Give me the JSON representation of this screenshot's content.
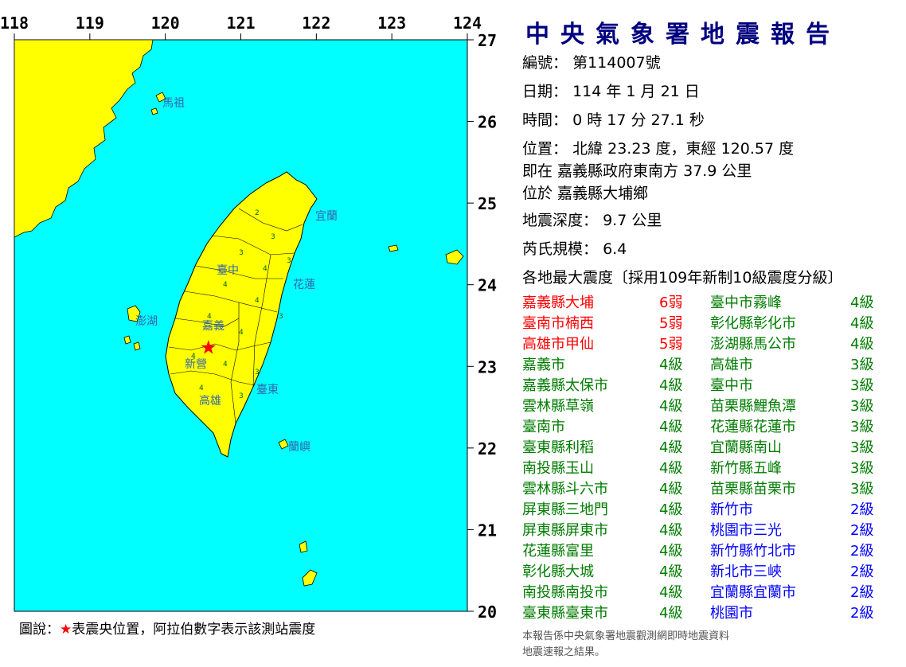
{
  "map": {
    "lon_ticks": [
      "118",
      "119",
      "120",
      "121",
      "122",
      "123",
      "124"
    ],
    "lat_ticks": [
      "27",
      "26",
      "25",
      "24",
      "23",
      "22",
      "21",
      "20"
    ],
    "place_labels": [
      {
        "name": "馬祖"
      },
      {
        "name": "宜蘭"
      },
      {
        "name": "花蓮"
      },
      {
        "name": "澎湖"
      },
      {
        "name": "臺東"
      },
      {
        "name": "蘭嶼"
      },
      {
        "name": "嘉義"
      },
      {
        "name": "新營"
      },
      {
        "name": "高雄"
      },
      {
        "name": "臺中"
      }
    ],
    "epicenter": {
      "lat": 23.23,
      "lon": 120.57
    },
    "colors": {
      "sea": "#00ffff",
      "land": "#ffff00",
      "epicenter": "#ff0000"
    }
  },
  "caption": {
    "prefix": "圖說：",
    "star": "★",
    "text": "表震央位置，阿拉伯數字表示該測站震度"
  },
  "report": {
    "title": "中央氣象署地震報告",
    "number_label": "編號：",
    "number_value": "第114007號",
    "date_label": "日期：",
    "date_value": "114 年 1 月 21 日",
    "time_label": "時間：",
    "time_value": "0 時 17 分 27.1 秒",
    "location_label": "位置：",
    "location_value": "北緯 23.23 度，東經 120.57 度",
    "relative_location": "即在 嘉義縣政府東南方 37.9 公里",
    "located_in": "位於 嘉義縣大埔鄉",
    "depth_label": "地震深度：",
    "depth_value": "9.7 公里",
    "magnitude_label": "芮氏規模：",
    "magnitude_value": "6.4",
    "intensity_header": "各地最大震度〔採用109年新制10級震度分級〕",
    "colors": {
      "red": "#ff0000",
      "green": "#007c00",
      "blue": "#0000ff"
    },
    "intensities": [
      {
        "left_name": "嘉義縣大埔",
        "left_level": "6弱",
        "left_color": "#ff0000",
        "right_name": "臺中市霧峰",
        "right_level": "4級",
        "right_color": "#007c00"
      },
      {
        "left_name": "臺南市楠西",
        "left_level": "5弱",
        "left_color": "#ff0000",
        "right_name": "彰化縣彰化市",
        "right_level": "4級",
        "right_color": "#007c00"
      },
      {
        "left_name": "高雄市甲仙",
        "left_level": "5弱",
        "left_color": "#ff0000",
        "right_name": "澎湖縣馬公市",
        "right_level": "4級",
        "right_color": "#007c00"
      },
      {
        "left_name": "嘉義市",
        "left_level": "4級",
        "left_color": "#007c00",
        "right_name": "高雄市",
        "right_level": "3級",
        "right_color": "#007c00"
      },
      {
        "left_name": "嘉義縣太保市",
        "left_level": "4級",
        "left_color": "#007c00",
        "right_name": "臺中市",
        "right_level": "3級",
        "right_color": "#007c00"
      },
      {
        "left_name": "雲林縣草嶺",
        "left_level": "4級",
        "left_color": "#007c00",
        "right_name": "苗栗縣鯉魚潭",
        "right_level": "3級",
        "right_color": "#007c00"
      },
      {
        "left_name": "臺南市",
        "left_level": "4級",
        "left_color": "#007c00",
        "right_name": "花蓮縣花蓮市",
        "right_level": "3級",
        "right_color": "#007c00"
      },
      {
        "left_name": "臺東縣利稻",
        "left_level": "4級",
        "left_color": "#007c00",
        "right_name": "宜蘭縣南山",
        "right_level": "3級",
        "right_color": "#007c00"
      },
      {
        "left_name": "南投縣玉山",
        "left_level": "4級",
        "left_color": "#007c00",
        "right_name": "新竹縣五峰",
        "right_level": "3級",
        "right_color": "#007c00"
      },
      {
        "left_name": "雲林縣斗六市",
        "left_level": "4級",
        "left_color": "#007c00",
        "right_name": "苗栗縣苗栗市",
        "right_level": "3級",
        "right_color": "#007c00"
      },
      {
        "left_name": "屏東縣三地門",
        "left_level": "4級",
        "left_color": "#007c00",
        "right_name": "新竹市",
        "right_level": "2級",
        "right_color": "#0000ff"
      },
      {
        "left_name": "屏東縣屏東市",
        "left_level": "4級",
        "left_color": "#007c00",
        "right_name": "桃園市三光",
        "right_level": "2級",
        "right_color": "#0000ff"
      },
      {
        "left_name": "花蓮縣富里",
        "left_level": "4級",
        "left_color": "#007c00",
        "right_name": "新竹縣竹北市",
        "right_level": "2級",
        "right_color": "#0000ff"
      },
      {
        "left_name": "彰化縣大城",
        "left_level": "4級",
        "left_color": "#007c00",
        "right_name": "新北市三峽",
        "right_level": "2級",
        "right_color": "#0000ff"
      },
      {
        "left_name": "南投縣南投市",
        "left_level": "4級",
        "left_color": "#007c00",
        "right_name": "宜蘭縣宜蘭市",
        "right_level": "2級",
        "right_color": "#0000ff"
      },
      {
        "left_name": "臺東縣臺東市",
        "left_level": "4級",
        "left_color": "#007c00",
        "right_name": "桃園市",
        "right_level": "2級",
        "right_color": "#0000ff"
      }
    ],
    "note_line1": "本報告係中央氣象署地震觀測網即時地震資料",
    "note_line2": "地震速報之結果。"
  }
}
